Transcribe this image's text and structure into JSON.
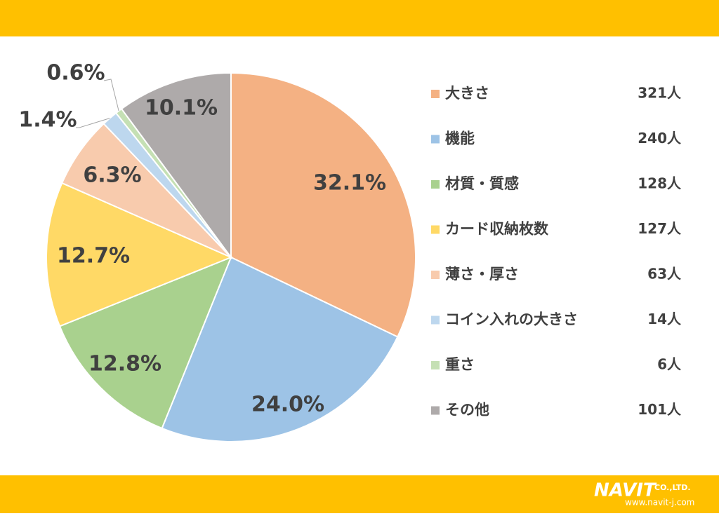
{
  "chart_data": {
    "type": "pie",
    "categories": [
      "大きさ",
      "機能",
      "材質・質感",
      "カード収納枚数",
      "薄さ・厚さ",
      "コイン入れの大きさ",
      "重さ",
      "その他"
    ],
    "values": [
      32.1,
      24.0,
      12.8,
      12.7,
      6.3,
      1.4,
      0.6,
      10.1
    ],
    "value_labels": [
      "32.1%",
      "24.0%",
      "12.8%",
      "12.7%",
      "6.3%",
      "1.4%",
      "0.6%",
      "10.1%"
    ],
    "count_labels": [
      "321人",
      "240人",
      "128人",
      "127人",
      "63人",
      "14人",
      "6人",
      "101人"
    ],
    "colors": [
      "#F4B183",
      "#9DC3E6",
      "#A9D18E",
      "#FFD966",
      "#F8CBAD",
      "#BDD7EE",
      "#C5E0B4",
      "#AEAAAA"
    ],
    "legend": "right"
  },
  "footer": {
    "brand": "NAVIT",
    "suffix": "CO.,LTD.",
    "url": "www.navit-j.com"
  }
}
